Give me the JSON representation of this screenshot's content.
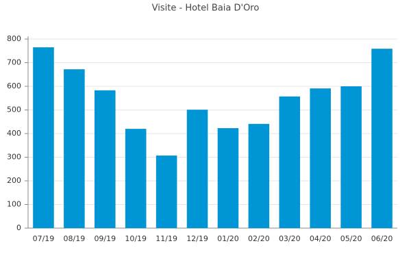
{
  "chart_data": {
    "type": "bar",
    "title": "Visite - Hotel Baia D'Oro",
    "categories": [
      "07/19",
      "08/19",
      "09/19",
      "10/19",
      "11/19",
      "12/19",
      "01/20",
      "02/20",
      "03/20",
      "04/20",
      "05/20",
      "06/20"
    ],
    "values": [
      765,
      672,
      583,
      420,
      307,
      501,
      423,
      441,
      557,
      591,
      600,
      759
    ],
    "color": "#0095d5",
    "ylim": [
      0,
      800
    ],
    "yticks": [
      0,
      100,
      200,
      300,
      400,
      500,
      600,
      700,
      800
    ],
    "grid": true
  }
}
